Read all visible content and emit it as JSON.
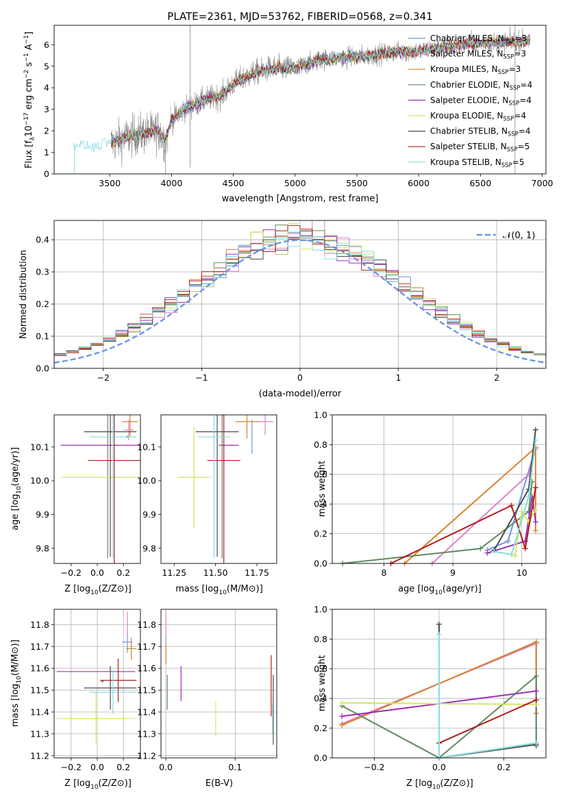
{
  "figure_title": "PLATE=2361, MJD=53762, FIBERID=0568, z=0.341",
  "colors": {
    "c1": "#6a96e0",
    "c2": "#e07fc2",
    "c3": "#d9802c",
    "c4": "#5d8b5d",
    "c5": "#9b2fb8",
    "c6": "#d4e660",
    "c7": "#4a4a4a",
    "c8": "#b01a1a",
    "c9": "#86dce0",
    "gray": "#888888",
    "grid": "#b0b0b0",
    "normal": "#6a96e0"
  },
  "chart_data": [
    {
      "id": "spectrum",
      "type": "line",
      "xlabel": "wavelength [Angstrom, rest frame]",
      "ylabel_parts": [
        "Flux [f",
        "λ",
        "10",
        "−17",
        " erg cm",
        "−2",
        " s",
        "−1",
        " A",
        "−1",
        "]"
      ],
      "xlim": [
        3050,
        7030
      ],
      "ylim": [
        0,
        6.9
      ],
      "xticks": [
        3500,
        4000,
        4500,
        5000,
        5500,
        6000,
        6500,
        7000
      ],
      "yticks": [
        0,
        1,
        2,
        3,
        4,
        5,
        6
      ],
      "grid": false,
      "legend_position": "right",
      "legend": [
        {
          "name": "Chabrier MILES",
          "nssp": "3",
          "color_key": "c1"
        },
        {
          "name": "Salpeter MILES",
          "nssp": "3",
          "color_key": "c2"
        },
        {
          "name": "Kroupa MILES",
          "nssp": "3",
          "color_key": "c3"
        },
        {
          "name": "Chabrier ELODIE",
          "nssp": "4",
          "color_key": "c4"
        },
        {
          "name": "Salpeter ELODIE",
          "nssp": "4",
          "color_key": "c5"
        },
        {
          "name": "Kroupa ELODIE",
          "nssp": "4",
          "color_key": "c6"
        },
        {
          "name": "Chabrier STELIB",
          "nssp": "4",
          "color_key": "c7"
        },
        {
          "name": "Salpeter STELIB",
          "nssp": "5",
          "color_key": "c8"
        },
        {
          "name": "Kroupa STELIB",
          "nssp": "5",
          "color_key": "c9"
        }
      ],
      "model_continuum": {
        "x": [
          3200,
          3300,
          3400,
          3500,
          3600,
          3700,
          3800,
          3900,
          3950,
          4000,
          4100,
          4200,
          4300,
          4400,
          4500,
          4600,
          4700,
          4800,
          4900,
          5000,
          5200,
          5400,
          5600,
          5800,
          6000,
          6200,
          6400,
          6600,
          6800,
          6900
        ],
        "y": [
          1.35,
          1.3,
          1.3,
          1.4,
          1.6,
          1.8,
          1.9,
          2.0,
          1.5,
          2.5,
          3.0,
          3.25,
          3.5,
          3.6,
          4.2,
          4.5,
          4.75,
          4.9,
          4.9,
          4.9,
          5.3,
          5.4,
          5.5,
          5.65,
          5.7,
          5.9,
          6.05,
          6.1,
          6.15,
          6.2
        ]
      },
      "data_spectrum": {
        "x_start": 3510,
        "x_end": 6900,
        "gap_start": 3970,
        "gap_end": 3990,
        "spike_x": 4150,
        "spike_x2": 6780
      }
    },
    {
      "id": "residuals",
      "type": "step",
      "xlabel": "(data-model)/error",
      "ylabel": "Normed distribution",
      "xlim": [
        -2.5,
        2.5
      ],
      "ylim": [
        0,
        0.46
      ],
      "xticks": [
        -2,
        -1,
        0,
        1,
        2
      ],
      "yticks": [
        0,
        0.1,
        0.2,
        0.3,
        0.4
      ],
      "grid": true,
      "legend_position": "top-right",
      "normal_label": "𝒩(0, 1)",
      "bin_width": 0.125
    },
    {
      "id": "age-vs-Z",
      "type": "errorbar",
      "xlabel": "Z [log10(Z/Z⊙)]",
      "ylabel": "age  [log10(age/yr)]",
      "xlim": [
        -0.33,
        0.33
      ],
      "ylim": [
        9.755,
        10.195
      ],
      "xticks": [
        -0.2,
        0.0,
        0.2
      ],
      "yticks": [
        9.8,
        9.9,
        10.0,
        10.1
      ],
      "grid": false,
      "points": [
        {
          "c": "c1",
          "x": 0.23,
          "xe": 0.0,
          "y": 10.13,
          "ye": 0.0
        },
        {
          "c": "c2",
          "x": 0.24,
          "xe": 0.04,
          "y": 10.15,
          "ye": 0.03
        },
        {
          "c": "c3",
          "x": 0.25,
          "xe": 0.06,
          "y": 10.175,
          "ye": 0.045
        },
        {
          "c": "c4",
          "x": 0.08,
          "xe": 0.0,
          "y": 10.12,
          "ye": 0.35
        },
        {
          "c": "c5",
          "x": 0.02,
          "xe": 0.3,
          "y": 10.105,
          "ye": 0.0
        },
        {
          "c": "c6",
          "x": 0.02,
          "xe": 0.3,
          "y": 10.01,
          "ye": 0.0
        },
        {
          "c": "c7",
          "x": 0.1,
          "xe": 0.2,
          "y": 10.145,
          "ye": 0.37
        },
        {
          "c": "c8",
          "x": 0.13,
          "xe": 0.2,
          "y": 10.06,
          "ye": 0.31
        },
        {
          "c": "c9",
          "x": 0.12,
          "xe": 0.18,
          "y": 10.13,
          "ye": 0.36
        }
      ]
    },
    {
      "id": "age-vs-mass",
      "type": "errorbar",
      "xlabel": "mass [log10(M/M⊙)]",
      "ylabel": "",
      "xlim": [
        11.17,
        11.87
      ],
      "ylim": [
        9.755,
        10.195
      ],
      "xticks": [
        11.25,
        11.5,
        11.75
      ],
      "yticks": [
        9.8,
        9.9,
        10.0,
        10.1
      ],
      "grid": false,
      "points": [
        {
          "c": "c1",
          "x": 11.72,
          "xe": 0.0,
          "y": 10.13,
          "ye": 0.05
        },
        {
          "c": "c2",
          "x": 11.8,
          "xe": 0.05,
          "y": 10.175,
          "ye": 0.04
        },
        {
          "c": "c3",
          "x": 11.69,
          "xe": 0.07,
          "y": 10.175,
          "ye": 0.05
        },
        {
          "c": "c4",
          "x": 11.54,
          "xe": 0.0,
          "y": 10.12,
          "ye": 0.35
        },
        {
          "c": "c5",
          "x": 11.58,
          "xe": 0.06,
          "y": 10.105,
          "ye": 0.0
        },
        {
          "c": "c6",
          "x": 11.37,
          "xe": 0.1,
          "y": 10.01,
          "ye": 0.15
        },
        {
          "c": "c7",
          "x": 11.51,
          "xe": 0.13,
          "y": 10.145,
          "ye": 0.37
        },
        {
          "c": "c8",
          "x": 11.55,
          "xe": 0.1,
          "y": 10.06,
          "ye": 0.31
        },
        {
          "c": "c9",
          "x": 11.49,
          "xe": 0.1,
          "y": 10.13,
          "ye": 0.36
        }
      ]
    },
    {
      "id": "weight-vs-age",
      "type": "line",
      "xlabel": "age  [log10(age/yr)]",
      "ylabel": "mass weight",
      "xlim": [
        7.25,
        10.35
      ],
      "ylim": [
        0,
        1.0
      ],
      "xticks": [
        8,
        9,
        10
      ],
      "yticks": [
        0.0,
        0.2,
        0.4,
        0.6,
        0.8,
        1.0
      ],
      "grid": true,
      "series": [
        {
          "c": "c1",
          "x": [
            9.5,
            9.8,
            10.2
          ],
          "y": [
            0.09,
            0.15,
            0.78
          ]
        },
        {
          "c": "c2",
          "x": [
            8.7,
            10.1,
            10.2
          ],
          "y": [
            0.0,
            0.6,
            0.77
          ]
        },
        {
          "c": "c3",
          "x": [
            8.3,
            10.2,
            10.2
          ],
          "y": [
            0.0,
            0.78,
            0.22
          ]
        },
        {
          "c": "c4",
          "x": [
            7.4,
            9.4,
            10.1,
            10.15
          ],
          "y": [
            0.0,
            0.1,
            0.35,
            0.55
          ]
        },
        {
          "c": "c5",
          "x": [
            9.5,
            10.05,
            10.15,
            10.2
          ],
          "y": [
            0.07,
            0.15,
            0.45,
            0.28
          ]
        },
        {
          "c": "c6",
          "x": [
            9.9,
            10.0,
            10.1,
            10.2
          ],
          "y": [
            0.05,
            0.35,
            0.28,
            0.36
          ]
        },
        {
          "c": "c7",
          "x": [
            9.6,
            10.1,
            10.2
          ],
          "y": [
            0.09,
            0.5,
            0.9
          ]
        },
        {
          "c": "c8",
          "x": [
            8.1,
            9.85,
            10.05,
            10.2
          ],
          "y": [
            0.0,
            0.39,
            0.1,
            0.51
          ]
        },
        {
          "c": "c9",
          "x": [
            9.6,
            9.85,
            10.1,
            10.2
          ],
          "y": [
            0.08,
            0.06,
            0.45,
            0.83
          ]
        }
      ]
    },
    {
      "id": "mass-vs-Z",
      "type": "errorbar",
      "xlabel": "Z [log10(Z/Z⊙)]",
      "ylabel": "mass [log10(M/M⊙)]",
      "xlim": [
        -0.33,
        0.33
      ],
      "ylim": [
        11.19,
        11.87
      ],
      "xticks": [
        -0.2,
        0.0,
        0.2
      ],
      "yticks": [
        11.2,
        11.3,
        11.4,
        11.5,
        11.6,
        11.7,
        11.8
      ],
      "grid": true,
      "points": [
        {
          "c": "c1",
          "x": 0.23,
          "xe": 0.04,
          "y": 11.72,
          "ye": 0.05
        },
        {
          "c": "c2",
          "x": 0.23,
          "xe": 0.0,
          "y": 11.8,
          "ye": 0.06
        },
        {
          "c": "c3",
          "x": 0.26,
          "xe": 0.04,
          "y": 11.69,
          "ye": 0.05
        },
        {
          "c": "c4",
          "x": 0.04,
          "xe": 0.0,
          "y": 11.54,
          "ye": 0.0
        },
        {
          "c": "c5",
          "x": -0.01,
          "xe": 0.3,
          "y": 11.585,
          "ye": 0.0
        },
        {
          "c": "c6",
          "x": -0.01,
          "xe": 0.3,
          "y": 11.37,
          "ye": 0.12
        },
        {
          "c": "c7",
          "x": 0.1,
          "xe": 0.2,
          "y": 11.51,
          "ye": 0.1
        },
        {
          "c": "c8",
          "x": 0.16,
          "xe": 0.14,
          "y": 11.545,
          "ye": 0.1
        },
        {
          "c": "c9",
          "x": 0.12,
          "xe": 0.18,
          "y": 11.49,
          "ye": 0.1
        }
      ]
    },
    {
      "id": "mass-vs-ebv",
      "type": "errorbar",
      "xlabel": "E(B-V)",
      "ylabel": "",
      "xlim": [
        -0.007,
        0.16
      ],
      "ylim": [
        11.19,
        11.87
      ],
      "xticks": [
        0.0,
        0.1
      ],
      "yticks": [
        11.2,
        11.3,
        11.4,
        11.5,
        11.6,
        11.7,
        11.8
      ],
      "grid": true,
      "points": [
        {
          "c": "c1",
          "x": 0.0,
          "xe": 0.0,
          "y": 11.7,
          "ye": 0.05
        },
        {
          "c": "c2",
          "x": 0.0,
          "xe": 0.0,
          "y": 11.8,
          "ye": 0.06
        },
        {
          "c": "c3",
          "x": 0.0,
          "xe": 0.0,
          "y": 11.67,
          "ye": 0.05
        },
        {
          "c": "c4",
          "x": 0.002,
          "xe": 0.0,
          "y": 11.49,
          "ye": 0.08
        },
        {
          "c": "c5",
          "x": 0.022,
          "xe": 0.0,
          "y": 11.53,
          "ye": 0.08
        },
        {
          "c": "c6",
          "x": 0.072,
          "xe": 0.0,
          "y": 11.37,
          "ye": 0.08
        },
        {
          "c": "c7",
          "x": 0.155,
          "xe": 0.0,
          "y": 11.41,
          "ye": 0.16
        },
        {
          "c": "c8",
          "x": 0.152,
          "xe": 0.0,
          "y": 11.52,
          "ye": 0.14
        },
        {
          "c": "c9",
          "x": 0.154,
          "xe": 0.0,
          "y": 11.37,
          "ye": 0.07
        }
      ]
    },
    {
      "id": "weight-vs-Z",
      "type": "line",
      "xlabel": "Z [log10(Z/Z⊙)]",
      "ylabel": "mass weight",
      "xlim": [
        -0.33,
        0.33
      ],
      "ylim": [
        0,
        1.0
      ],
      "xticks": [
        -0.2,
        0.0,
        0.2
      ],
      "yticks": [
        0.0,
        0.2,
        0.4,
        0.6,
        0.8,
        1.0
      ],
      "grid": true,
      "series": [
        {
          "c": "c1",
          "x": [
            0.0,
            0.3,
            0.3
          ],
          "y": [
            0.0,
            0.1,
            0.78
          ]
        },
        {
          "c": "c2",
          "x": [
            -0.3,
            0.3,
            0.3
          ],
          "y": [
            0.23,
            0.77,
            0.3
          ]
        },
        {
          "c": "c3",
          "x": [
            -0.3,
            0.3,
            0.3
          ],
          "y": [
            0.22,
            0.78,
            0.3
          ]
        },
        {
          "c": "c4",
          "x": [
            -0.3,
            0.0,
            0.3,
            0.3
          ],
          "y": [
            0.35,
            0.0,
            0.55,
            0.08
          ]
        },
        {
          "c": "c5",
          "x": [
            -0.3,
            0.3
          ],
          "y": [
            0.28,
            0.45
          ]
        },
        {
          "c": "c6",
          "x": [
            -0.3,
            0.3
          ],
          "y": [
            0.37,
            0.36
          ]
        },
        {
          "c": "c7",
          "x": [
            0.0,
            0.0,
            0.3
          ],
          "y": [
            0.9,
            0.0,
            0.09
          ]
        },
        {
          "c": "c8",
          "x": [
            0.0,
            0.3
          ],
          "y": [
            0.1,
            0.39
          ]
        },
        {
          "c": "c9",
          "x": [
            0.0,
            0.0,
            0.3
          ],
          "y": [
            0.83,
            0.0,
            0.1
          ]
        }
      ]
    }
  ]
}
